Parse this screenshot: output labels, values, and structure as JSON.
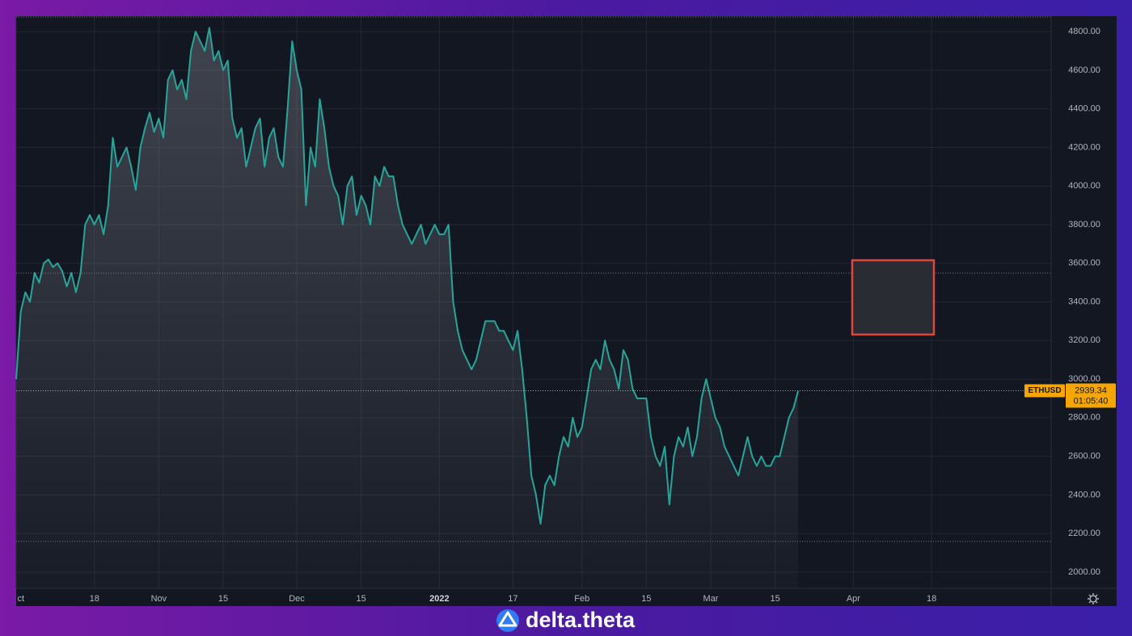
{
  "chart_data": {
    "type": "area",
    "series": [
      {
        "name": "ETHUSD",
        "color": "#26a69a",
        "values": [
          3000,
          3350,
          3450,
          3400,
          3550,
          3500,
          3600,
          3620,
          3580,
          3600,
          3560,
          3480,
          3550,
          3450,
          3550,
          3800,
          3850,
          3800,
          3850,
          3750,
          3900,
          4250,
          4100,
          4150,
          4200,
          4100,
          3980,
          4200,
          4300,
          4380,
          4280,
          4350,
          4250,
          4550,
          4600,
          4500,
          4550,
          4450,
          4700,
          4800,
          4750,
          4700,
          4820,
          4650,
          4700,
          4600,
          4650,
          4350,
          4250,
          4300,
          4100,
          4200,
          4300,
          4350,
          4100,
          4250,
          4300,
          4150,
          4100,
          4400,
          4750,
          4600,
          4500,
          3900,
          4200,
          4100,
          4450,
          4300,
          4100,
          4000,
          3950,
          3800,
          4000,
          4050,
          3850,
          3950,
          3900,
          3800,
          4050,
          4000,
          4100,
          4050,
          4050,
          3900,
          3800,
          3750,
          3700,
          3750,
          3800,
          3700,
          3750,
          3800,
          3750,
          3750,
          3800,
          3400,
          3250,
          3150,
          3100,
          3050,
          3100,
          3200,
          3300,
          3300,
          3300,
          3250,
          3250,
          3200,
          3150,
          3250,
          3050,
          2800,
          2500,
          2400,
          2250,
          2450,
          2500,
          2450,
          2600,
          2700,
          2650,
          2800,
          2700,
          2750,
          2900,
          3050,
          3100,
          3050,
          3200,
          3100,
          3050,
          2950,
          3150,
          3100,
          2950,
          2900,
          2900,
          2900,
          2700,
          2600,
          2550,
          2650,
          2350,
          2600,
          2700,
          2650,
          2750,
          2600,
          2700,
          2900,
          3000,
          2900,
          2800,
          2750,
          2650,
          2600,
          2550,
          2500,
          2600,
          2700,
          2600,
          2550,
          2600,
          2550,
          2550,
          2600,
          2600,
          2700,
          2800,
          2850,
          2939.34
        ]
      }
    ],
    "x": [
      0,
      1,
      2,
      3,
      4,
      5,
      6,
      7,
      8,
      9,
      10,
      11,
      12,
      13,
      14,
      15,
      16,
      17,
      18,
      19,
      20,
      21,
      22,
      23,
      24,
      25,
      26,
      27,
      28,
      29,
      30,
      31,
      32,
      33,
      34,
      35,
      36,
      37,
      38,
      39,
      40,
      41,
      42,
      43,
      44,
      45,
      46,
      47,
      48,
      49,
      50,
      51,
      52,
      53,
      54,
      55,
      56,
      57,
      58,
      59,
      60,
      61,
      62,
      63,
      64,
      65,
      66,
      67,
      68,
      69,
      70,
      71,
      72,
      73,
      74,
      75,
      76,
      77,
      78,
      79,
      80,
      81,
      82,
      83,
      84,
      85,
      86,
      87,
      88,
      89,
      90,
      91,
      92,
      93,
      94,
      95,
      96,
      97,
      98,
      99,
      100,
      101,
      102,
      103,
      104,
      105,
      106,
      107,
      108,
      109,
      110,
      111,
      112,
      113,
      114,
      115,
      116,
      117,
      118,
      119,
      120,
      121,
      122,
      123,
      124,
      125,
      126,
      127,
      128,
      129,
      130,
      131,
      132,
      133,
      134,
      135,
      136,
      137,
      138,
      139,
      140,
      141,
      142,
      143,
      144,
      145,
      146,
      147,
      148,
      149,
      150,
      151,
      152,
      153,
      154,
      155,
      156,
      157,
      158,
      159,
      160,
      161,
      162,
      163,
      164,
      165,
      166,
      167,
      168,
      169,
      170
    ],
    "xlim": [
      0,
      225
    ],
    "xticks": [
      {
        "value": 0,
        "label": "ct"
      },
      {
        "value": 17,
        "label": "18"
      },
      {
        "value": 31,
        "label": "Nov"
      },
      {
        "value": 45,
        "label": "15"
      },
      {
        "value": 61,
        "label": "Dec"
      },
      {
        "value": 75,
        "label": "15"
      },
      {
        "value": 92,
        "label": "2022"
      },
      {
        "value": 108,
        "label": "17"
      },
      {
        "value": 123,
        "label": "Feb"
      },
      {
        "value": 137,
        "label": "15"
      },
      {
        "value": 151,
        "label": "Mar"
      },
      {
        "value": 165,
        "label": "15"
      },
      {
        "value": 182,
        "label": "Apr"
      },
      {
        "value": 199,
        "label": "18"
      }
    ],
    "ylim": [
      1916,
      4880
    ],
    "yticks": [
      {
        "value": 2000,
        "label": "2000.00"
      },
      {
        "value": 2200,
        "label": "2200.00"
      },
      {
        "value": 2400,
        "label": "2400.00"
      },
      {
        "value": 2600,
        "label": "2600.00"
      },
      {
        "value": 2800,
        "label": "2800.00"
      },
      {
        "value": 3000,
        "label": "3000.00"
      },
      {
        "value": 3200,
        "label": "3200.00"
      },
      {
        "value": 3400,
        "label": "3400.00"
      },
      {
        "value": 3600,
        "label": "3600.00"
      },
      {
        "value": 3800,
        "label": "3800.00"
      },
      {
        "value": 4000,
        "label": "4000.00"
      },
      {
        "value": 4200,
        "label": "4200.00"
      },
      {
        "value": 4400,
        "label": "4400.00"
      },
      {
        "value": 4600,
        "label": "4600.00"
      },
      {
        "value": 4800,
        "label": "4800.00"
      }
    ],
    "grid": true,
    "countdown": "01:05:40"
  },
  "brand": "delta.theta"
}
